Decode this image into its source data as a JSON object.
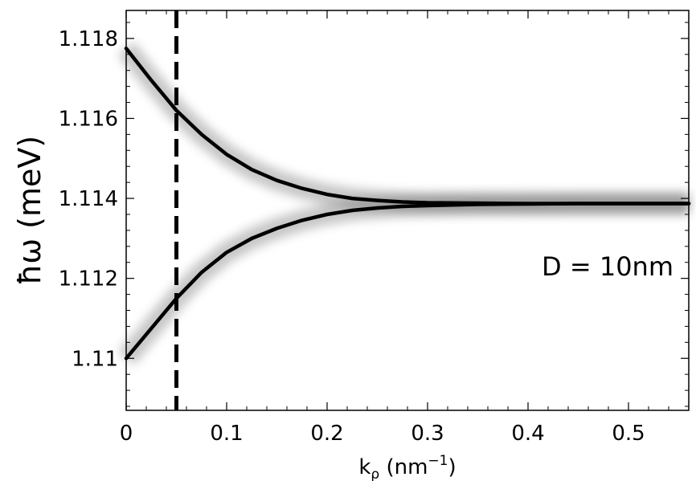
{
  "chart_data": {
    "type": "line",
    "xlabel_main": "k",
    "xlabel_sub": "ρ",
    "xlabel_unit_open": " (nm",
    "xlabel_unit_sup": "−1",
    "xlabel_unit_close": ")",
    "ylabel": "ħω (meV)",
    "xlim": [
      0,
      0.56
    ],
    "ylim": [
      1.1087,
      1.1187
    ],
    "x_ticks": [
      0,
      0.1,
      0.2,
      0.3,
      0.4,
      0.5
    ],
    "x_tick_labels": [
      "0",
      "0.1",
      "0.2",
      "0.3",
      "0.4",
      "0.5"
    ],
    "y_ticks": [
      1.11,
      1.112,
      1.114,
      1.116,
      1.118
    ],
    "y_tick_labels": [
      "1.11",
      "1.112",
      "1.114",
      "1.116",
      "1.118"
    ],
    "annotation": "D = 10nm",
    "vline_x": 0.05,
    "grid": false,
    "series": [
      {
        "x": [
          0,
          0.025,
          0.05,
          0.075,
          0.1,
          0.125,
          0.15,
          0.175,
          0.2,
          0.225,
          0.25,
          0.275,
          0.3,
          0.35,
          0.4,
          0.45,
          0.5,
          0.56
        ],
        "y": [
          1.11775,
          1.11695,
          1.1162,
          1.1156,
          1.1151,
          1.11472,
          1.11445,
          1.11425,
          1.1141,
          1.114,
          1.11395,
          1.11391,
          1.11389,
          1.11388,
          1.11387,
          1.11387,
          1.11387,
          1.11387
        ]
      },
      {
        "x": [
          0,
          0.025,
          0.05,
          0.075,
          0.1,
          0.125,
          0.15,
          0.175,
          0.2,
          0.225,
          0.25,
          0.275,
          0.3,
          0.35,
          0.4,
          0.45,
          0.5,
          0.56
        ],
        "y": [
          1.11,
          1.11075,
          1.1115,
          1.11215,
          1.11265,
          1.113,
          1.11325,
          1.11345,
          1.1136,
          1.1137,
          1.11376,
          1.1138,
          1.11382,
          1.11385,
          1.11386,
          1.11387,
          1.11387,
          1.11387
        ]
      }
    ]
  }
}
